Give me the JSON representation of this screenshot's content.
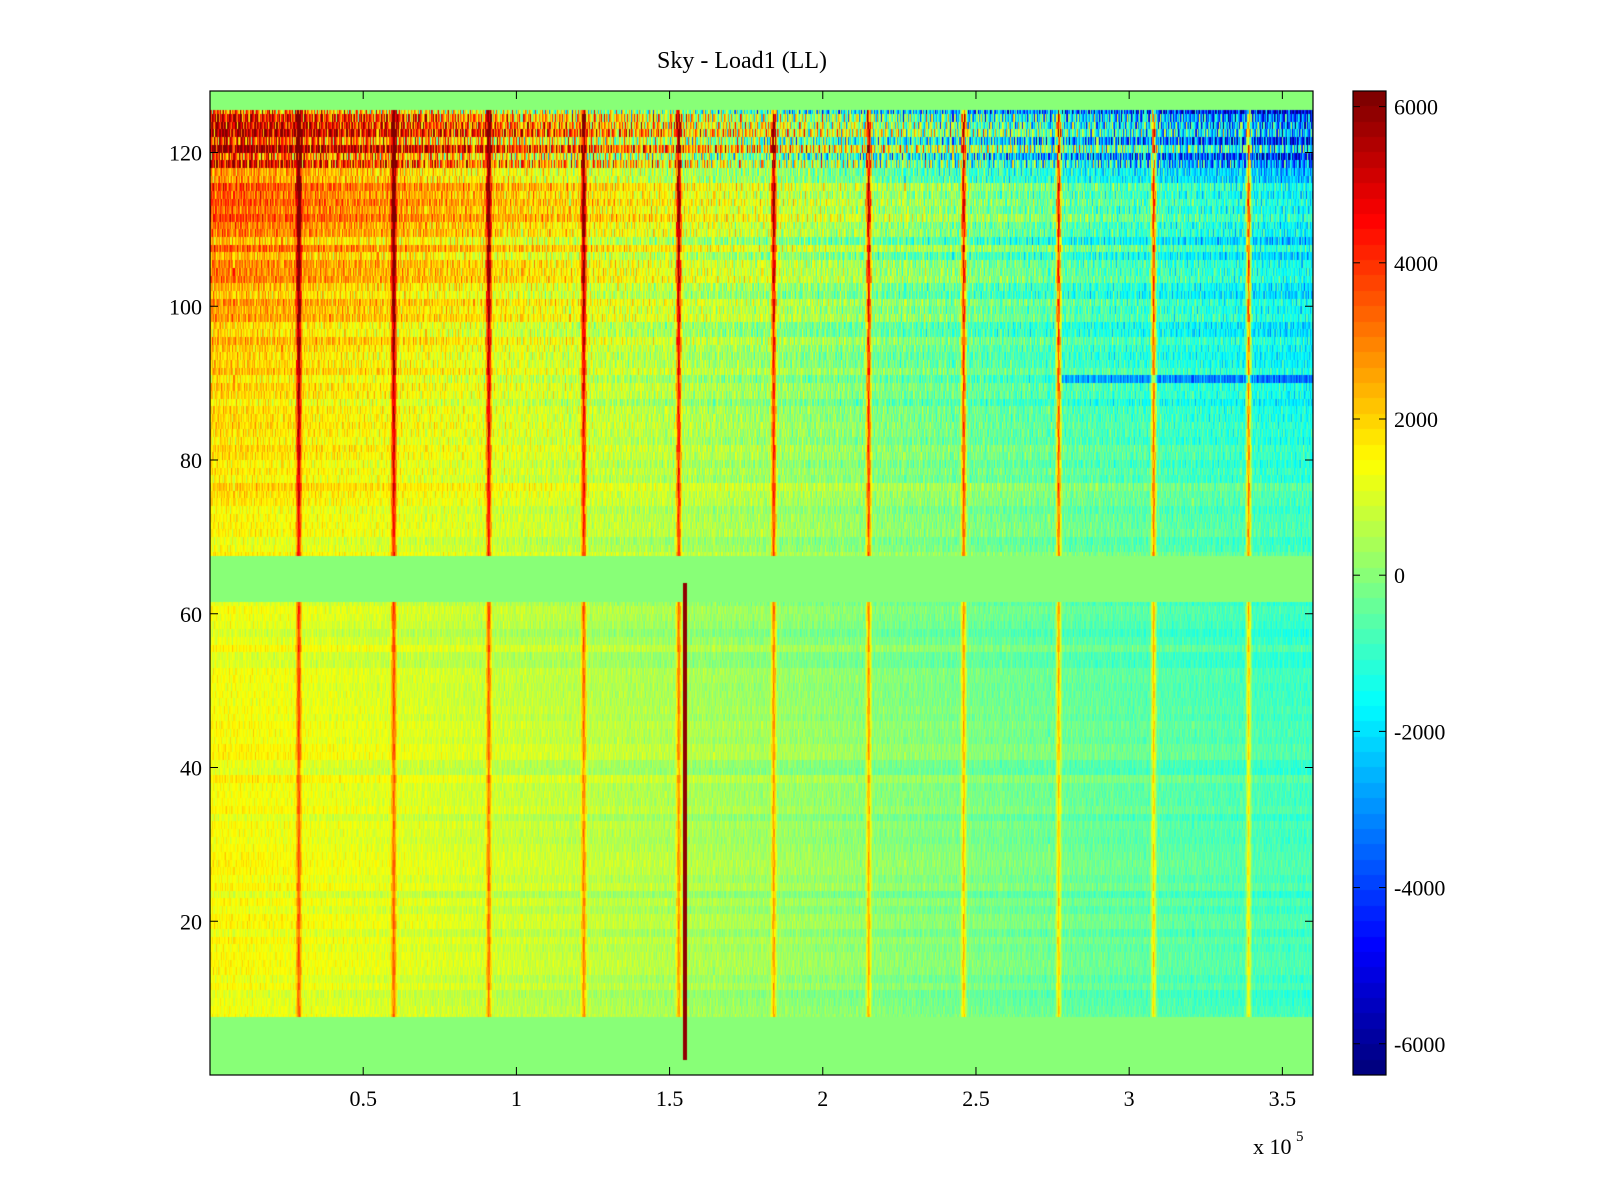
{
  "chart_data": {
    "type": "heatmap",
    "title": "Sky - Load1 (LL)",
    "xlabel": "",
    "ylabel": "",
    "x_range": [
      0,
      3.6
    ],
    "x_multiplier": "x 10",
    "x_multiplier_exponent": "5",
    "y_range": [
      0,
      128
    ],
    "x_ticks": [
      0.5,
      1,
      1.5,
      2,
      2.5,
      3,
      3.5
    ],
    "x_tick_labels": [
      "0.5",
      "1",
      "1.5",
      "2",
      "2.5",
      "3",
      "3.5"
    ],
    "y_ticks": [
      20,
      40,
      60,
      80,
      100,
      120
    ],
    "y_tick_labels": [
      "20",
      "40",
      "60",
      "80",
      "100",
      "120"
    ],
    "colorbar": {
      "range": [
        -6400,
        6200
      ],
      "colormap": "jet",
      "ticks": [
        6000,
        4000,
        2000,
        0,
        -2000,
        -4000,
        -6000
      ],
      "tick_labels": [
        "6000",
        "4000",
        "2000",
        "0",
        "-2000",
        "-4000",
        "-6000"
      ]
    },
    "fill_value": 0,
    "data_channel_range": [
      7.5,
      125.5
    ],
    "blank_channel_band": [
      61.5,
      67.5
    ],
    "positive_spike_times": [
      0.29,
      0.6,
      0.91,
      1.22,
      1.53,
      1.84,
      2.15,
      2.46,
      2.77,
      3.08,
      3.39
    ],
    "dropout_line": {
      "x": 1.55,
      "y_range": [
        2,
        64
      ],
      "value": 6000
    },
    "row_90_offset": -800,
    "grid": false,
    "legend": "none"
  },
  "colors": {
    "background_fill": "#8cff6e",
    "cmap_jet_start": "#00008f",
    "cmap_jet_end": "#800000"
  }
}
